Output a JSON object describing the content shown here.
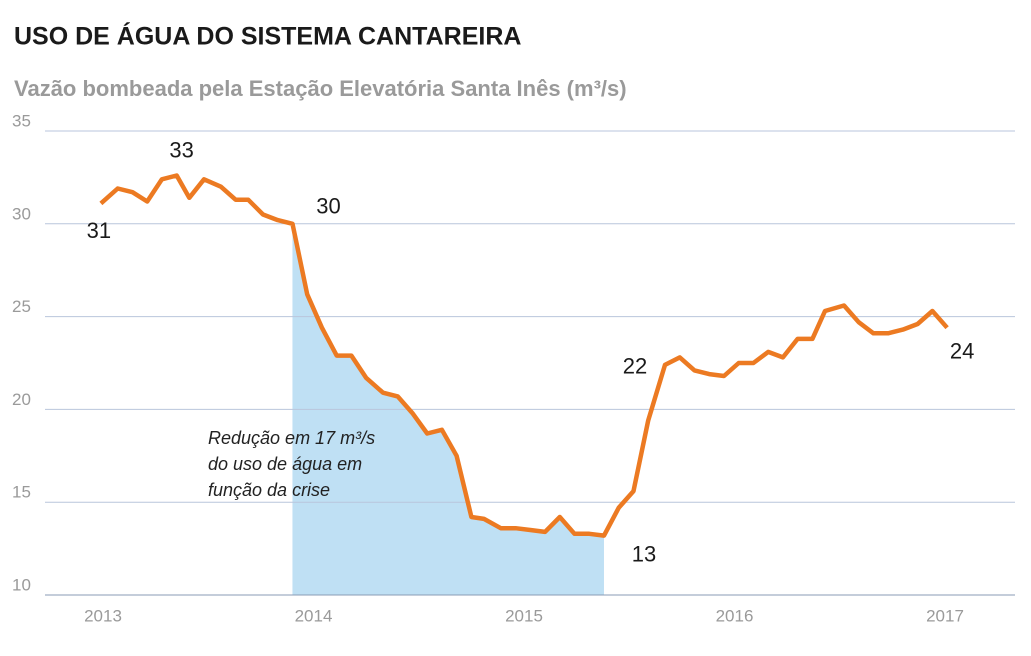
{
  "chart_data": {
    "type": "line",
    "title": "USO DE ÁGUA DO SISTEMA CANTAREIRA",
    "subtitle": "Vazão bombeada pela Estação Elevatória Santa Inês (m³/s)",
    "x": [
      2012.99,
      2013.07,
      2013.14,
      2013.21,
      2013.28,
      2013.35,
      2013.41,
      2013.48,
      2013.56,
      2013.63,
      2013.69,
      2013.76,
      2013.83,
      2013.9,
      2013.97,
      2014.04,
      2014.11,
      2014.18,
      2014.25,
      2014.33,
      2014.4,
      2014.47,
      2014.54,
      2014.61,
      2014.68,
      2014.75,
      2014.81,
      2014.89,
      2014.96,
      2015.03,
      2015.1,
      2015.17,
      2015.24,
      2015.31,
      2015.38,
      2015.45,
      2015.52,
      2015.59,
      2015.67,
      2015.74,
      2015.81,
      2015.88,
      2015.95,
      2016.02,
      2016.09,
      2016.16,
      2016.23,
      2016.3,
      2016.37,
      2016.43,
      2016.52,
      2016.59,
      2016.66,
      2016.73,
      2016.8,
      2016.87,
      2016.94,
      2017.01
    ],
    "series": [
      {
        "color": "#ec7a22",
        "values": [
          31.1,
          31.9,
          31.7,
          31.2,
          32.4,
          32.6,
          31.4,
          32.4,
          32.0,
          31.3,
          31.3,
          30.5,
          30.2,
          30.0,
          26.2,
          24.4,
          22.9,
          22.9,
          21.7,
          20.9,
          20.7,
          19.8,
          18.7,
          18.9,
          17.5,
          14.2,
          14.1,
          13.6,
          13.6,
          13.5,
          13.4,
          14.2,
          13.3,
          13.3,
          13.2,
          14.7,
          15.6,
          19.4,
          22.4,
          22.8,
          22.1,
          21.9,
          21.8,
          22.5,
          22.5,
          23.1,
          22.8,
          23.8,
          23.8,
          25.3,
          25.6,
          24.7,
          24.1,
          24.1,
          24.3,
          24.6,
          25.3,
          24.4
        ]
      }
    ],
    "point_labels": [
      {
        "index": 0,
        "label": "31"
      },
      {
        "index": 5,
        "label": "33"
      },
      {
        "index": 13,
        "label": "30"
      },
      {
        "index": 38,
        "label": "22"
      },
      {
        "index": 34,
        "label": "13"
      },
      {
        "index": 57,
        "label": "24"
      }
    ],
    "shaded_range": [
      2013.9,
      2015.38
    ],
    "shaded_color": "#bfe0f4",
    "annotation": [
      "Redução em 17 m³/s",
      "do uso de água em",
      "função da crise"
    ],
    "xlim": [
      2012.6,
      2017.35
    ],
    "xticks": [
      2013,
      2014,
      2015,
      2016,
      2017
    ],
    "ylim": [
      10,
      35
    ],
    "yticks": [
      10,
      15,
      20,
      25,
      30,
      35
    ],
    "grid": true
  }
}
